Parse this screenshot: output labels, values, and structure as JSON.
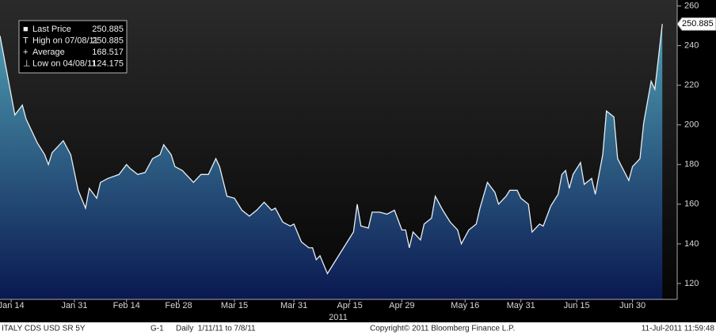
{
  "chart_data": {
    "type": "area",
    "x_group_label": "2011",
    "xlim": [
      "2011-01-11",
      "2011-07-12"
    ],
    "xticks": [
      {
        "value": "2011-01-14",
        "label": "Jan 14"
      },
      {
        "value": "2011-01-31",
        "label": "Jan 31"
      },
      {
        "value": "2011-02-14",
        "label": "Feb 14"
      },
      {
        "value": "2011-02-28",
        "label": "Feb 28"
      },
      {
        "value": "2011-03-15",
        "label": "Mar 15"
      },
      {
        "value": "2011-03-31",
        "label": "Mar 31"
      },
      {
        "value": "2011-04-15",
        "label": "Apr 15"
      },
      {
        "value": "2011-04-29",
        "label": "Apr 29"
      },
      {
        "value": "2011-05-16",
        "label": "May 16"
      },
      {
        "value": "2011-05-31",
        "label": "May 31"
      },
      {
        "value": "2011-06-15",
        "label": "Jun 15"
      },
      {
        "value": "2011-06-30",
        "label": "Jun 30"
      }
    ],
    "ylim": [
      112,
      263
    ],
    "yticks": [
      120,
      140,
      160,
      180,
      200,
      220,
      240,
      260
    ],
    "series": [
      {
        "name": "Last Price",
        "color": "#e8eef2",
        "fill_top": "#4f9fb3",
        "fill_bottom": "#0a1850",
        "x": [
          "2011-01-11",
          "2011-01-13",
          "2011-01-15",
          "2011-01-17",
          "2011-01-18",
          "2011-01-21",
          "2011-01-23",
          "2011-01-24",
          "2011-01-25",
          "2011-01-28",
          "2011-01-30",
          "2011-02-01",
          "2011-02-03",
          "2011-02-04",
          "2011-02-06",
          "2011-02-07",
          "2011-02-09",
          "2011-02-12",
          "2011-02-14",
          "2011-02-15",
          "2011-02-17",
          "2011-02-19",
          "2011-02-21",
          "2011-02-23",
          "2011-02-24",
          "2011-02-26",
          "2011-02-27",
          "2011-03-01",
          "2011-03-04",
          "2011-03-06",
          "2011-03-08",
          "2011-03-10",
          "2011-03-11",
          "2011-03-13",
          "2011-03-15",
          "2011-03-17",
          "2011-03-19",
          "2011-03-21",
          "2011-03-23",
          "2011-03-25",
          "2011-03-26",
          "2011-03-28",
          "2011-03-30",
          "2011-03-31",
          "2011-04-02",
          "2011-04-04",
          "2011-04-05",
          "2011-04-06",
          "2011-04-07",
          "2011-04-09",
          "2011-04-10",
          "2011-04-12",
          "2011-04-14",
          "2011-04-16",
          "2011-04-17",
          "2011-04-18",
          "2011-04-20",
          "2011-04-21",
          "2011-04-23",
          "2011-04-25",
          "2011-04-27",
          "2011-04-29",
          "2011-04-30",
          "2011-05-01",
          "2011-05-02",
          "2011-05-04",
          "2011-05-05",
          "2011-05-07",
          "2011-05-08",
          "2011-05-10",
          "2011-05-12",
          "2011-05-14",
          "2011-05-15",
          "2011-05-17",
          "2011-05-19",
          "2011-05-20",
          "2011-05-22",
          "2011-05-24",
          "2011-05-25",
          "2011-05-27",
          "2011-05-28",
          "2011-05-30",
          "2011-05-31",
          "2011-06-02",
          "2011-06-03",
          "2011-06-05",
          "2011-06-06",
          "2011-06-08",
          "2011-06-10",
          "2011-06-11",
          "2011-06-12",
          "2011-06-13",
          "2011-06-14",
          "2011-06-16",
          "2011-06-17",
          "2011-06-19",
          "2011-06-20",
          "2011-06-22",
          "2011-06-23",
          "2011-06-25",
          "2011-06-26",
          "2011-06-29",
          "2011-06-30",
          "2011-07-02",
          "2011-07-03",
          "2011-07-05",
          "2011-07-06",
          "2011-07-08"
        ],
        "values": [
          245,
          225,
          205,
          210,
          203,
          191,
          185,
          180,
          186,
          192,
          185,
          167,
          158,
          168,
          163,
          171,
          173,
          175,
          180,
          178,
          175,
          176,
          183,
          185,
          190,
          185,
          179,
          177,
          171,
          175,
          175,
          183,
          179,
          164,
          163,
          157,
          154,
          157,
          161,
          157,
          158,
          151,
          149,
          150,
          141,
          138,
          138,
          132,
          134,
          125,
          128,
          134,
          140,
          146,
          160,
          149,
          148,
          156,
          156,
          155,
          157,
          147,
          147,
          138,
          146,
          142,
          150,
          153,
          164,
          157,
          151,
          147,
          140,
          147,
          150,
          158,
          171,
          166,
          160,
          164,
          167,
          167,
          163,
          160,
          146,
          150,
          149,
          159,
          165,
          175,
          177,
          168,
          175,
          181,
          170,
          173,
          165,
          185,
          207,
          204,
          183,
          172,
          179,
          183,
          201,
          222,
          218,
          250.885
        ]
      }
    ],
    "legend": [
      {
        "label": "Last Price",
        "value": 250.885
      },
      {
        "label": "High on 07/08/11",
        "value": 250.885
      },
      {
        "label": "Average",
        "value": 168.517
      },
      {
        "label": "Low on 04/08/11",
        "value": 124.175
      }
    ],
    "footer": {
      "security": "ITALY CDS USD SR 5Y",
      "chart_id": "G-1",
      "period": "Daily  1/11/11 to 7/8/11",
      "copyright": "Copyright© 2011 Bloomberg Finance L.P.",
      "timestamp": "11-Jul-2011 11:59:48"
    }
  }
}
